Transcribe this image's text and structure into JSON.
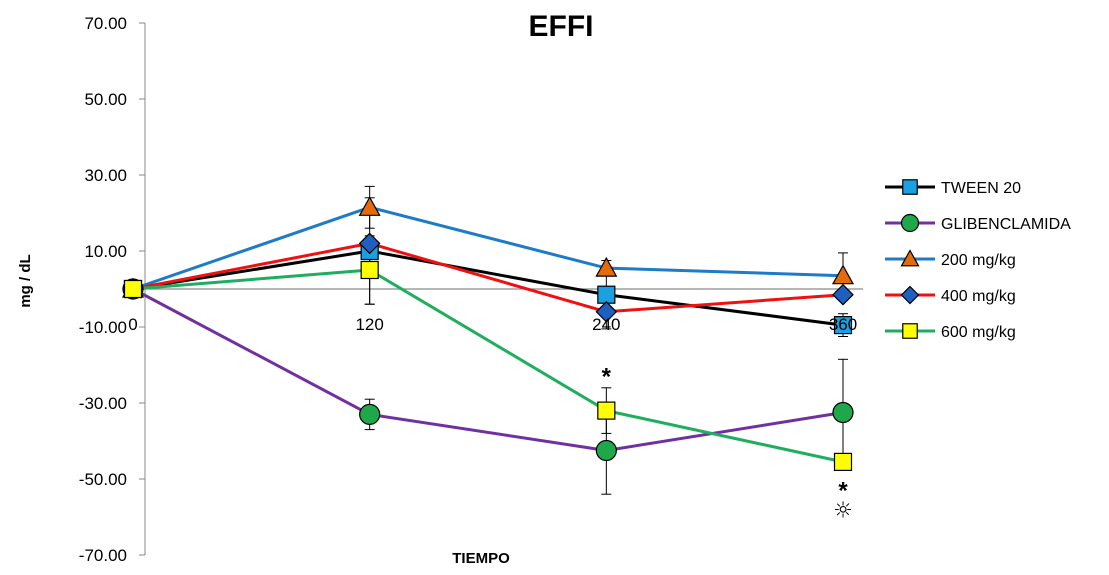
{
  "chart_data": {
    "type": "line",
    "title": "EFFI",
    "xlabel": "TIEMPO",
    "ylabel": "mg / dL",
    "x": [
      0,
      120,
      240,
      360
    ],
    "x_tick_labels": [
      "0",
      "120",
      "240",
      "360"
    ],
    "ylim": [
      -70,
      70
    ],
    "y_ticks": [
      70,
      50,
      30,
      10,
      -10,
      -30,
      -50,
      -70
    ],
    "y_tick_labels": [
      "70.00",
      "50.00",
      "30.00",
      "10.00",
      "-10.00",
      "-30.00",
      "-50.00",
      "-70.00"
    ],
    "grid": false,
    "zero_line": true,
    "legend_position": "right",
    "series": [
      {
        "name": "TWEEN 20",
        "values": [
          0,
          10,
          -1.5,
          -9.5
        ],
        "error": [
          0,
          14,
          9,
          3
        ],
        "line_color": "#000000",
        "marker": "square",
        "marker_color": "#1ba1e2"
      },
      {
        "name": "GLIBENCLAMIDA",
        "values": [
          0,
          -33,
          -42.5,
          -32.5
        ],
        "error": [
          0,
          4,
          11.5,
          14
        ],
        "line_color": "#7030a0",
        "marker": "circle",
        "marker_color": "#1fa84a"
      },
      {
        "name": "200 mg/kg",
        "values": [
          0,
          21.5,
          5.5,
          3.5
        ],
        "error": [
          0,
          5.5,
          0,
          6
        ],
        "line_color": "#1e7bc6",
        "marker": "triangle",
        "marker_color": "#e36c09"
      },
      {
        "name": "400 mg/kg",
        "values": [
          0,
          12,
          -6,
          -1.5
        ],
        "error": [
          0,
          0,
          0,
          0
        ],
        "line_color": "#ee1111",
        "marker": "diamond",
        "marker_color": "#1f5fbf"
      },
      {
        "name": "600 mg/kg",
        "values": [
          0,
          5,
          -32,
          -45.5
        ],
        "error": [
          0,
          9,
          6,
          0
        ],
        "line_color": "#1fae5e",
        "marker": "square",
        "marker_color": "#ffff00"
      }
    ],
    "annotations": [
      {
        "text": "*",
        "x": 240,
        "y": -22
      },
      {
        "text": "*",
        "x": 360,
        "y": -52
      },
      {
        "text": "☼",
        "x": 360,
        "y": -58
      }
    ]
  }
}
